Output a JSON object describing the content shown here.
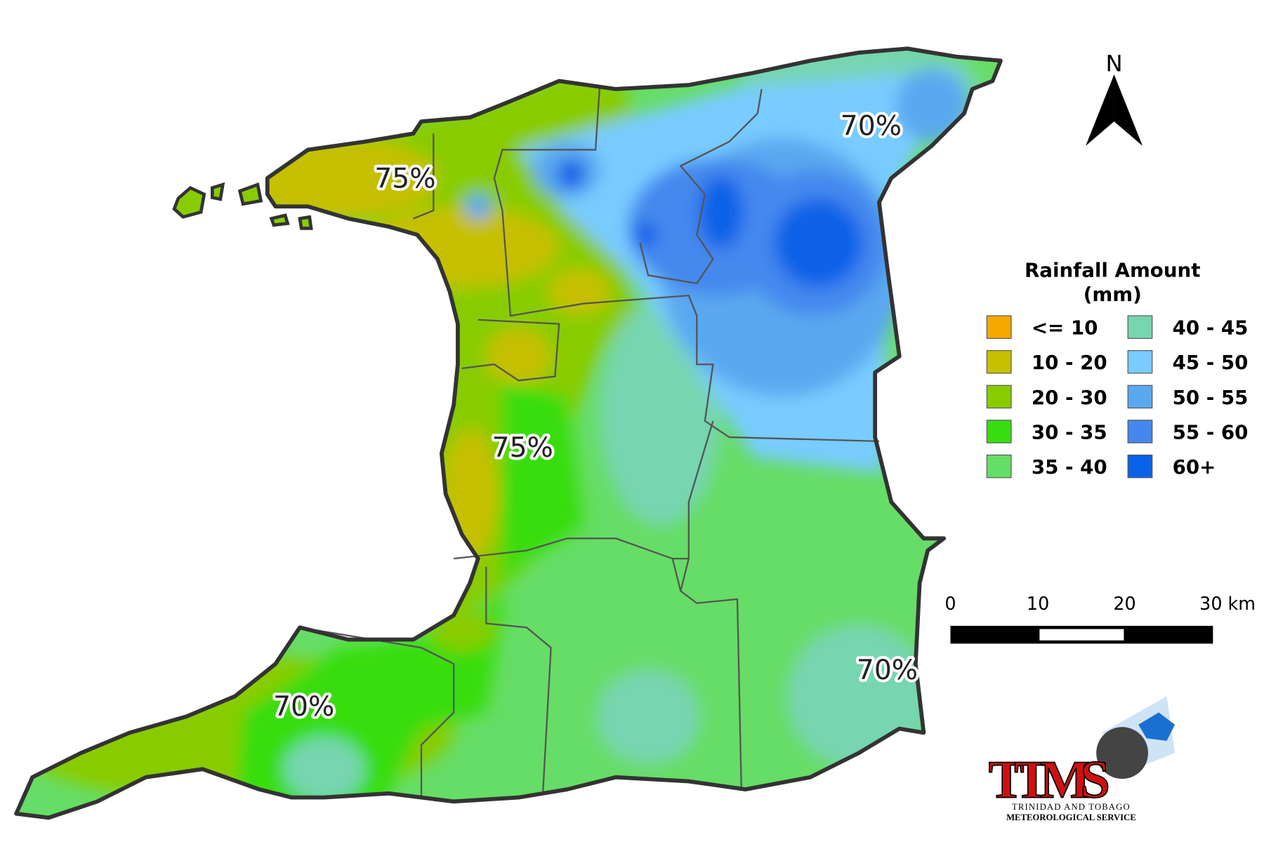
{
  "map": {
    "percent_labels": [
      "75%",
      "75%",
      "70%",
      "70%",
      "70%"
    ],
    "north": "N"
  },
  "legend": {
    "title_line1": "Rainfall Amount",
    "title_line2": "(mm)",
    "items": [
      {
        "label": "<= 10",
        "color": "#f5a800"
      },
      {
        "label": "10 - 20",
        "color": "#c6c000"
      },
      {
        "label": "20 - 30",
        "color": "#88cc00"
      },
      {
        "label": "30 - 35",
        "color": "#38dd10"
      },
      {
        "label": "35 - 40",
        "color": "#66dd66"
      },
      {
        "label": "40 - 45",
        "color": "#77d5b0"
      },
      {
        "label": "45 - 50",
        "color": "#78ccff"
      },
      {
        "label": "50 - 55",
        "color": "#5aa8f0"
      },
      {
        "label": "55 - 60",
        "color": "#4488ee"
      },
      {
        "label": "60+",
        "color": "#0a62e8"
      }
    ]
  },
  "scale_bar": {
    "labels": [
      "0",
      "10",
      "20",
      "30 km"
    ]
  },
  "logo": {
    "name": "TTMS",
    "line1": "TRINIDAD AND TOBAGO",
    "line2": "METEOROLOGICAL SERVICE"
  }
}
